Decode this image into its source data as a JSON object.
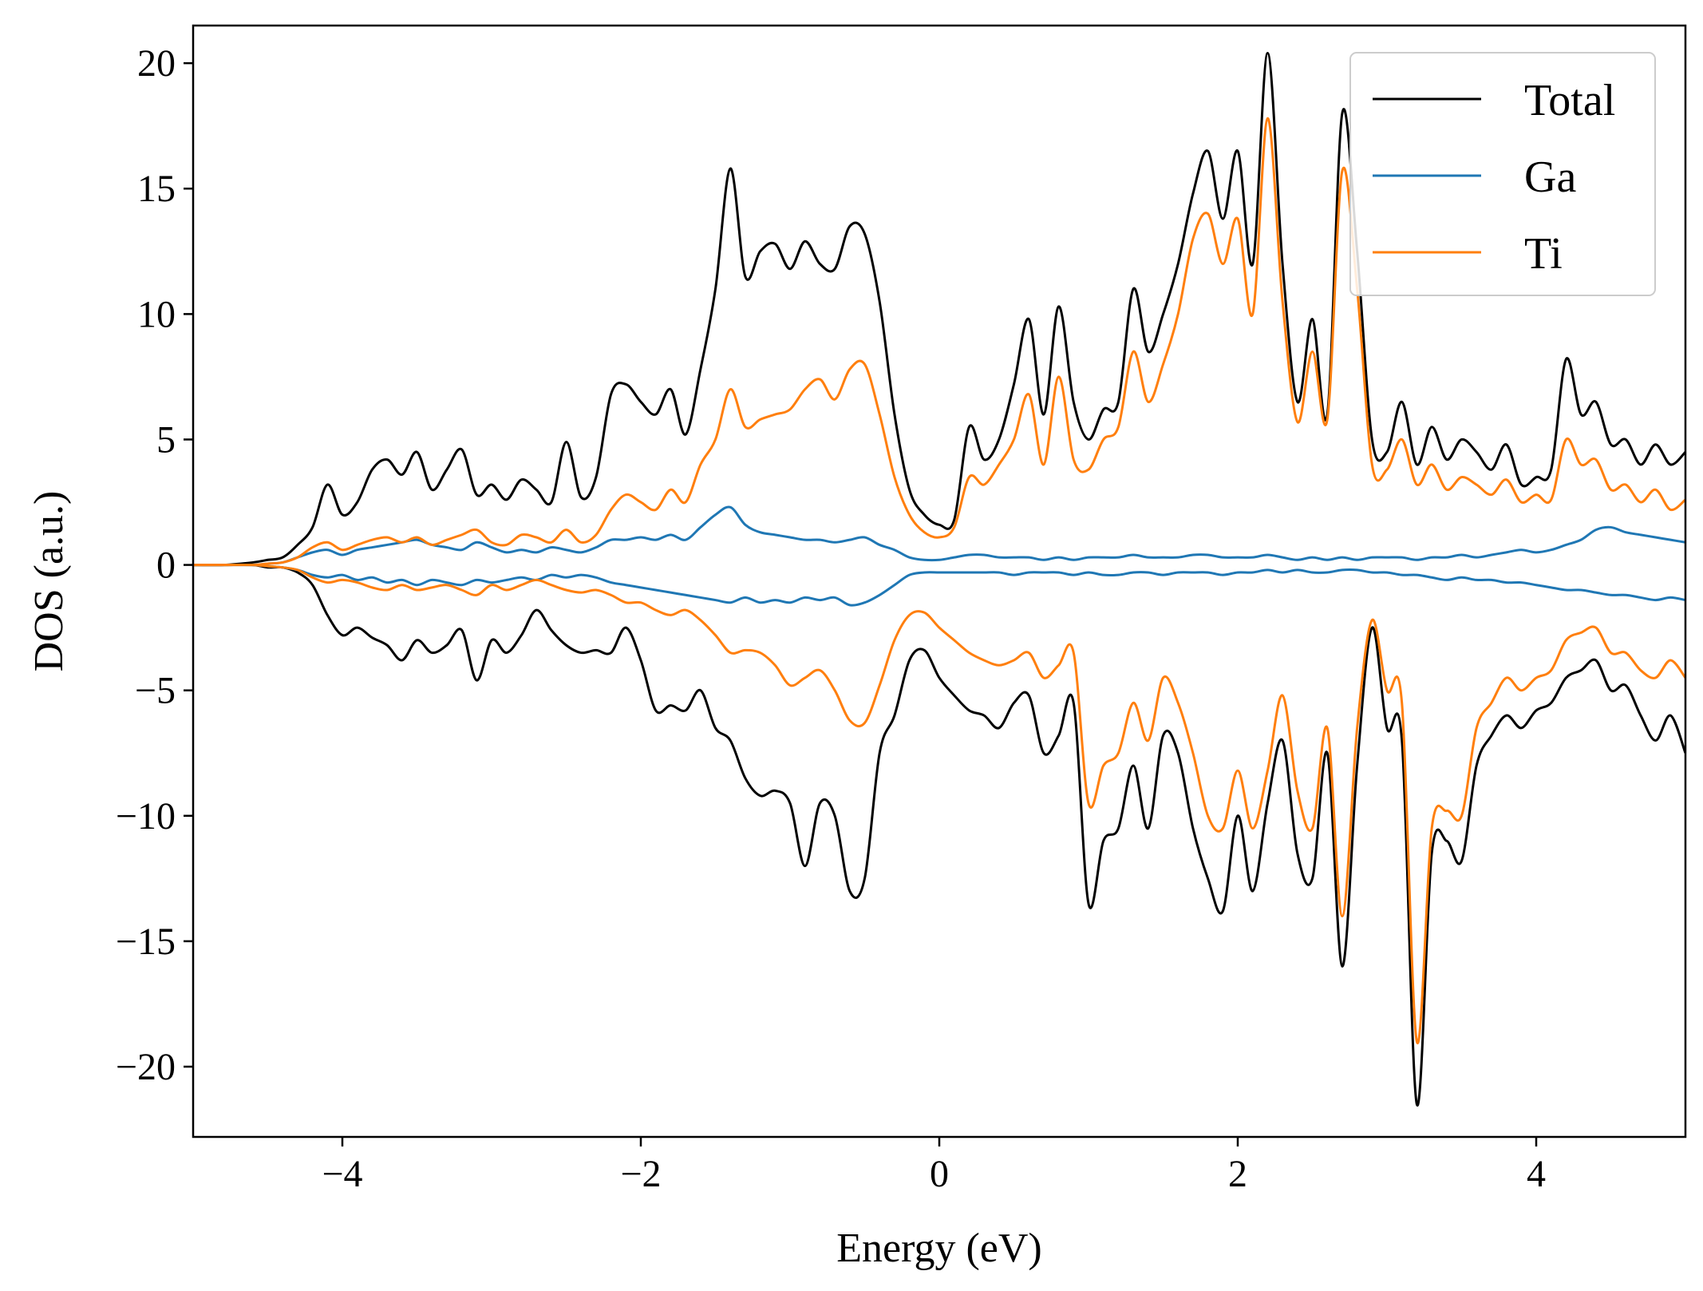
{
  "chart_data": {
    "type": "line",
    "title": "",
    "xlabel": "Energy (eV)",
    "ylabel": "DOS (a.u.)",
    "xlim": [
      -5,
      5
    ],
    "ylim": [
      -22.8,
      21.5
    ],
    "xticks": [
      -4,
      -2,
      0,
      2,
      4
    ],
    "xtick_labels": [
      "−4",
      "−2",
      "0",
      "2",
      "4"
    ],
    "yticks": [
      20,
      15,
      10,
      5,
      0,
      -5,
      -10,
      -15,
      -20
    ],
    "ytick_labels": [
      "20",
      "15",
      "10",
      "5",
      "0",
      "−5",
      "−10",
      "−15",
      "−20"
    ],
    "grid": false,
    "legend": {
      "position": "top-right",
      "entries": [
        "Total",
        "Ga",
        "Ti"
      ]
    },
    "colors": {
      "Total": "#000000",
      "Ga": "#1f77b4",
      "Ti": "#ff7f0e"
    },
    "x": [
      -5.0,
      -4.8,
      -4.6,
      -4.5,
      -4.4,
      -4.3,
      -4.2,
      -4.1,
      -4.0,
      -3.9,
      -3.8,
      -3.7,
      -3.6,
      -3.5,
      -3.4,
      -3.3,
      -3.2,
      -3.1,
      -3.0,
      -2.9,
      -2.8,
      -2.7,
      -2.6,
      -2.5,
      -2.4,
      -2.3,
      -2.2,
      -2.1,
      -2.0,
      -1.9,
      -1.8,
      -1.7,
      -1.6,
      -1.5,
      -1.4,
      -1.3,
      -1.2,
      -1.1,
      -1.0,
      -0.9,
      -0.8,
      -0.7,
      -0.6,
      -0.5,
      -0.4,
      -0.3,
      -0.2,
      -0.1,
      0.0,
      0.1,
      0.2,
      0.3,
      0.4,
      0.5,
      0.6,
      0.7,
      0.8,
      0.9,
      1.0,
      1.1,
      1.2,
      1.3,
      1.4,
      1.5,
      1.6,
      1.7,
      1.8,
      1.9,
      2.0,
      2.1,
      2.2,
      2.3,
      2.4,
      2.5,
      2.6,
      2.7,
      2.8,
      2.9,
      3.0,
      3.1,
      3.2,
      3.3,
      3.4,
      3.5,
      3.6,
      3.7,
      3.8,
      3.9,
      4.0,
      4.1,
      4.2,
      4.3,
      4.4,
      4.5,
      4.6,
      4.7,
      4.8,
      4.9,
      5.0
    ],
    "series": [
      {
        "name": "Total",
        "spin_up": [
          0,
          0,
          0.1,
          0.2,
          0.3,
          0.8,
          1.5,
          3.2,
          2.0,
          2.5,
          3.8,
          4.2,
          3.6,
          4.5,
          3.0,
          3.8,
          4.6,
          2.8,
          3.2,
          2.6,
          3.4,
          3.0,
          2.5,
          4.9,
          2.7,
          3.5,
          6.8,
          7.2,
          6.5,
          6.0,
          7.0,
          5.2,
          7.8,
          11.0,
          15.8,
          11.5,
          12.5,
          12.8,
          11.8,
          12.9,
          12.0,
          11.8,
          13.5,
          13.2,
          10.5,
          6.0,
          3.0,
          2.0,
          1.6,
          1.8,
          5.5,
          4.2,
          5.0,
          7.2,
          9.8,
          6.0,
          10.3,
          6.5,
          5.0,
          6.2,
          6.5,
          11.0,
          8.5,
          10.0,
          12.0,
          14.8,
          16.5,
          13.8,
          16.5,
          12.0,
          20.4,
          12.0,
          6.5,
          9.8,
          6.0,
          18.0,
          12.5,
          5.0,
          4.5,
          6.5,
          4.0,
          5.5,
          4.2,
          5.0,
          4.5,
          3.8,
          4.8,
          3.2,
          3.5,
          3.8,
          8.2,
          6.0,
          6.5,
          4.8,
          5.0,
          4.0,
          4.8,
          4.0,
          4.5
        ],
        "spin_down": [
          0,
          0,
          0,
          -0.1,
          -0.1,
          -0.3,
          -0.8,
          -2.0,
          -2.8,
          -2.5,
          -2.9,
          -3.2,
          -3.8,
          -3.0,
          -3.5,
          -3.2,
          -2.6,
          -4.6,
          -3.0,
          -3.5,
          -2.8,
          -1.8,
          -2.6,
          -3.2,
          -3.5,
          -3.4,
          -3.5,
          -2.5,
          -3.8,
          -5.8,
          -5.6,
          -5.8,
          -5.0,
          -6.5,
          -7.0,
          -8.5,
          -9.2,
          -9.0,
          -9.5,
          -12.0,
          -9.5,
          -10.0,
          -13.0,
          -12.5,
          -7.5,
          -6.0,
          -3.8,
          -3.4,
          -4.5,
          -5.2,
          -5.8,
          -6.0,
          -6.5,
          -5.5,
          -5.2,
          -7.5,
          -6.8,
          -5.5,
          -13.5,
          -11.0,
          -10.5,
          -8.0,
          -10.5,
          -6.8,
          -7.5,
          -10.5,
          -12.5,
          -13.8,
          -10.0,
          -13.0,
          -9.5,
          -7.0,
          -11.5,
          -12.5,
          -7.5,
          -16.0,
          -8.0,
          -2.5,
          -6.5,
          -7.0,
          -21.5,
          -11.5,
          -11.0,
          -11.8,
          -8.0,
          -6.8,
          -6.0,
          -6.5,
          -5.8,
          -5.5,
          -4.5,
          -4.2,
          -3.8,
          -5.0,
          -4.8,
          -6.0,
          -7.0,
          -6.0,
          -7.5
        ]
      },
      {
        "name": "Ga",
        "spin_up": [
          0,
          0,
          0,
          0.05,
          0.1,
          0.3,
          0.5,
          0.6,
          0.4,
          0.6,
          0.7,
          0.8,
          0.9,
          1.0,
          0.8,
          0.7,
          0.6,
          0.9,
          0.7,
          0.5,
          0.6,
          0.5,
          0.7,
          0.6,
          0.5,
          0.7,
          1.0,
          1.0,
          1.1,
          1.0,
          1.2,
          1.0,
          1.5,
          2.0,
          2.3,
          1.6,
          1.3,
          1.2,
          1.1,
          1.0,
          1.0,
          0.9,
          1.0,
          1.1,
          0.8,
          0.6,
          0.3,
          0.2,
          0.2,
          0.3,
          0.4,
          0.4,
          0.3,
          0.3,
          0.3,
          0.2,
          0.3,
          0.2,
          0.3,
          0.3,
          0.3,
          0.4,
          0.3,
          0.3,
          0.3,
          0.4,
          0.4,
          0.3,
          0.3,
          0.3,
          0.4,
          0.3,
          0.2,
          0.3,
          0.2,
          0.3,
          0.2,
          0.3,
          0.3,
          0.3,
          0.2,
          0.3,
          0.3,
          0.4,
          0.3,
          0.4,
          0.5,
          0.6,
          0.5,
          0.6,
          0.8,
          1.0,
          1.4,
          1.5,
          1.3,
          1.2,
          1.1,
          1.0,
          0.9
        ],
        "spin_down": [
          0,
          0,
          0,
          -0.05,
          -0.1,
          -0.2,
          -0.4,
          -0.5,
          -0.4,
          -0.6,
          -0.5,
          -0.7,
          -0.6,
          -0.8,
          -0.6,
          -0.7,
          -0.8,
          -0.6,
          -0.7,
          -0.6,
          -0.5,
          -0.6,
          -0.4,
          -0.5,
          -0.4,
          -0.5,
          -0.7,
          -0.8,
          -0.9,
          -1.0,
          -1.1,
          -1.2,
          -1.3,
          -1.4,
          -1.5,
          -1.3,
          -1.5,
          -1.4,
          -1.5,
          -1.3,
          -1.4,
          -1.3,
          -1.6,
          -1.5,
          -1.2,
          -0.8,
          -0.4,
          -0.3,
          -0.3,
          -0.3,
          -0.3,
          -0.3,
          -0.3,
          -0.4,
          -0.3,
          -0.3,
          -0.3,
          -0.4,
          -0.3,
          -0.4,
          -0.4,
          -0.3,
          -0.3,
          -0.4,
          -0.3,
          -0.3,
          -0.3,
          -0.4,
          -0.3,
          -0.3,
          -0.2,
          -0.3,
          -0.2,
          -0.3,
          -0.3,
          -0.2,
          -0.2,
          -0.3,
          -0.3,
          -0.4,
          -0.4,
          -0.5,
          -0.6,
          -0.5,
          -0.6,
          -0.6,
          -0.7,
          -0.7,
          -0.8,
          -0.9,
          -1.0,
          -1.0,
          -1.1,
          -1.2,
          -1.2,
          -1.3,
          -1.4,
          -1.3,
          -1.4
        ]
      },
      {
        "name": "Ti",
        "spin_up": [
          0,
          0,
          0,
          0.05,
          0.1,
          0.3,
          0.7,
          0.9,
          0.6,
          0.8,
          1.0,
          1.1,
          0.9,
          1.1,
          0.8,
          1.0,
          1.2,
          1.4,
          0.9,
          0.8,
          1.2,
          1.1,
          0.9,
          1.4,
          0.9,
          1.2,
          2.2,
          2.8,
          2.5,
          2.2,
          3.0,
          2.5,
          4.0,
          5.0,
          7.0,
          5.5,
          5.8,
          6.0,
          6.2,
          7.0,
          7.4,
          6.6,
          7.8,
          8.0,
          6.0,
          3.5,
          2.0,
          1.3,
          1.1,
          1.5,
          3.5,
          3.2,
          4.0,
          5.0,
          6.8,
          4.0,
          7.5,
          4.2,
          3.8,
          5.0,
          5.5,
          8.5,
          6.5,
          8.0,
          10.0,
          13.0,
          14.0,
          12.0,
          13.8,
          10.0,
          17.8,
          10.5,
          5.7,
          8.5,
          5.8,
          15.7,
          11.0,
          4.0,
          3.8,
          5.0,
          3.2,
          4.0,
          3.0,
          3.5,
          3.2,
          2.8,
          3.4,
          2.5,
          2.8,
          2.6,
          5.0,
          4.0,
          4.2,
          3.0,
          3.2,
          2.5,
          3.0,
          2.2,
          2.6
        ],
        "spin_down": [
          0,
          0,
          0,
          -0.05,
          -0.1,
          -0.2,
          -0.5,
          -0.7,
          -0.6,
          -0.7,
          -0.9,
          -1.0,
          -0.8,
          -1.0,
          -0.9,
          -0.8,
          -1.0,
          -1.2,
          -0.8,
          -1.0,
          -0.8,
          -0.6,
          -0.8,
          -1.0,
          -1.1,
          -1.0,
          -1.2,
          -1.5,
          -1.5,
          -1.8,
          -2.0,
          -1.8,
          -2.2,
          -2.8,
          -3.5,
          -3.4,
          -3.5,
          -4.0,
          -4.8,
          -4.5,
          -4.2,
          -5.0,
          -6.2,
          -6.3,
          -4.8,
          -3.0,
          -2.0,
          -1.9,
          -2.5,
          -3.0,
          -3.5,
          -3.8,
          -4.0,
          -3.8,
          -3.5,
          -4.5,
          -4.0,
          -3.5,
          -9.5,
          -8.0,
          -7.5,
          -5.5,
          -7.0,
          -4.5,
          -5.5,
          -7.5,
          -10.0,
          -10.5,
          -8.2,
          -10.5,
          -8.2,
          -5.2,
          -9.0,
          -10.5,
          -6.5,
          -14.0,
          -6.5,
          -2.2,
          -5.0,
          -5.5,
          -19.0,
          -10.5,
          -9.8,
          -10.0,
          -6.5,
          -5.5,
          -4.5,
          -5.0,
          -4.5,
          -4.2,
          -3.0,
          -2.7,
          -2.5,
          -3.5,
          -3.5,
          -4.2,
          -4.5,
          -3.8,
          -4.5
        ]
      }
    ]
  }
}
